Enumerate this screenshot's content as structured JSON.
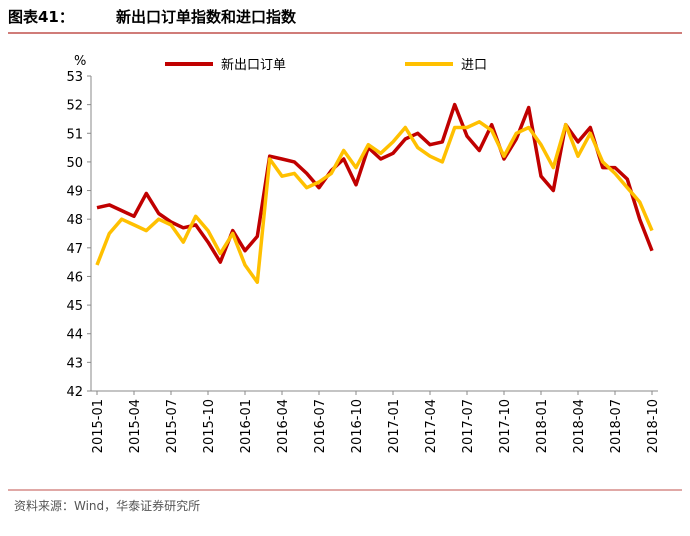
{
  "chart_data": {
    "type": "line",
    "figure_label": "图表41：",
    "title": "新出口订单指数和进口指数",
    "y_unit": "%",
    "source": "资料来源：Wind，华泰证券研究所",
    "categories": [
      "2015-01",
      null,
      null,
      "2015-04",
      null,
      null,
      "2015-07",
      null,
      null,
      "2015-10",
      null,
      null,
      "2016-01",
      null,
      null,
      "2016-04",
      null,
      null,
      "2016-07",
      null,
      null,
      "2016-10",
      null,
      null,
      "2017-01",
      null,
      null,
      "2017-04",
      null,
      null,
      "2017-07",
      null,
      null,
      "2017-10",
      null,
      null,
      "2018-01",
      null,
      null,
      "2018-04",
      null,
      null,
      "2018-07",
      null,
      null,
      "2018-10"
    ],
    "series": [
      {
        "name": "新出口订单",
        "color": "#c00000",
        "values": [
          48.4,
          48.5,
          48.3,
          48.1,
          48.9,
          48.2,
          47.9,
          47.7,
          47.8,
          47.2,
          46.5,
          47.6,
          46.9,
          47.4,
          50.2,
          50.1,
          50.0,
          49.6,
          49.1,
          49.7,
          50.1,
          49.2,
          50.5,
          50.1,
          50.3,
          50.8,
          51.0,
          50.6,
          50.7,
          52.0,
          50.9,
          50.4,
          51.3,
          50.1,
          50.8,
          51.9,
          49.5,
          49.0,
          51.3,
          50.7,
          51.2,
          49.8,
          49.8,
          49.4,
          48.0,
          46.9
        ]
      },
      {
        "name": "进口",
        "color": "#ffc000",
        "values": [
          46.4,
          47.5,
          48.0,
          47.8,
          47.6,
          48.0,
          47.8,
          47.2,
          48.1,
          47.6,
          46.8,
          47.5,
          46.4,
          45.8,
          50.1,
          49.5,
          49.6,
          49.1,
          49.3,
          49.6,
          50.4,
          49.8,
          50.6,
          50.3,
          50.7,
          51.2,
          50.5,
          50.2,
          50.0,
          51.2,
          51.2,
          51.4,
          51.1,
          50.2,
          51.0,
          51.2,
          50.6,
          49.8,
          51.3,
          50.2,
          51.0,
          50.0,
          49.6,
          49.1,
          48.6,
          47.6
        ]
      }
    ],
    "ylim": [
      42,
      53
    ],
    "yticks": [
      42,
      43,
      44,
      45,
      46,
      47,
      48,
      49,
      50,
      51,
      52,
      53
    ]
  }
}
